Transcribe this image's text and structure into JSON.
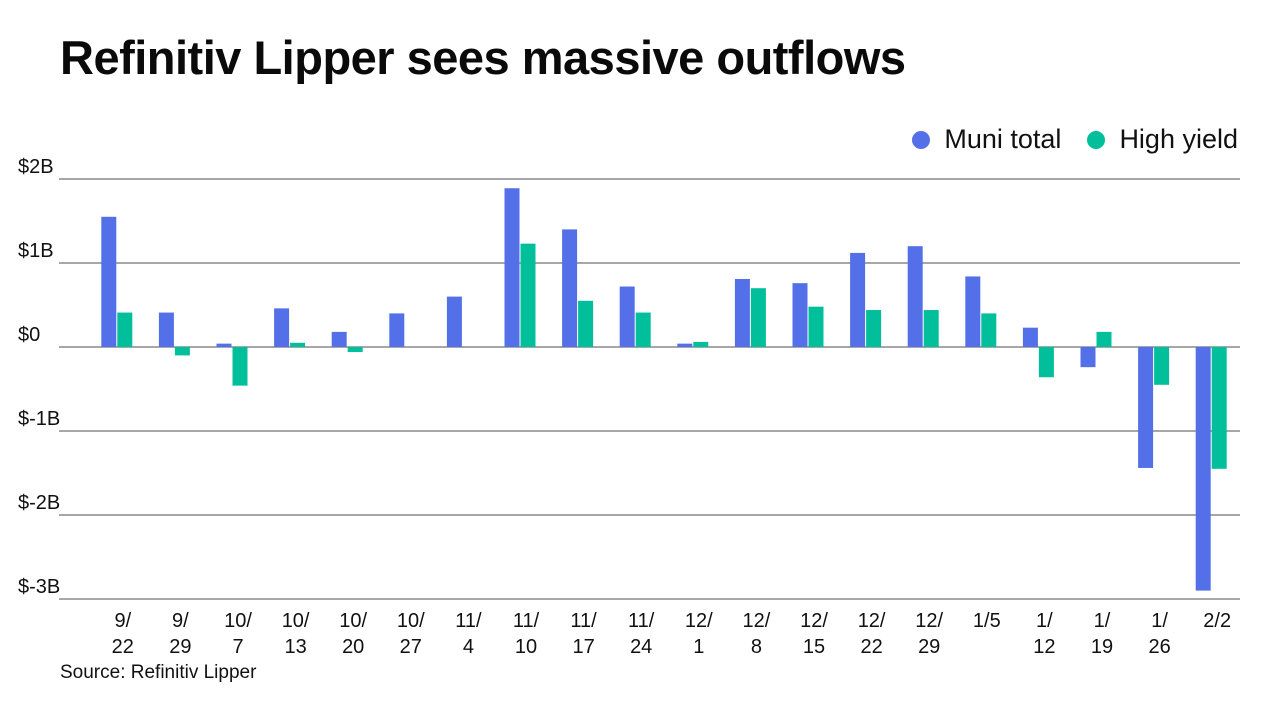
{
  "title": "Refinitiv Lipper sees massive outflows",
  "source": "Source: Refinitiv Lipper",
  "chart_data": {
    "type": "bar",
    "title": "Refinitiv Lipper sees massive outflows",
    "xlabel": "",
    "ylabel": "",
    "ylim": [
      -3,
      2
    ],
    "grid": true,
    "legend_position": "top-right",
    "y_ticks": [
      {
        "value": 2,
        "label": "$2B"
      },
      {
        "value": 1,
        "label": "$1B"
      },
      {
        "value": 0,
        "label": "$0"
      },
      {
        "value": -1,
        "label": "$-1B"
      },
      {
        "value": -2,
        "label": "$-2B"
      },
      {
        "value": -3,
        "label": "$-3B"
      }
    ],
    "categories": [
      [
        "9/",
        "22"
      ],
      [
        "9/",
        "29"
      ],
      [
        "10/",
        "7"
      ],
      [
        "10/",
        "13"
      ],
      [
        "10/",
        "20"
      ],
      [
        "10/",
        "27"
      ],
      [
        "11/",
        "4"
      ],
      [
        "11/",
        "10"
      ],
      [
        "11/",
        "17"
      ],
      [
        "11/",
        "24"
      ],
      [
        "12/",
        "1"
      ],
      [
        "12/",
        "8"
      ],
      [
        "12/",
        "15"
      ],
      [
        "12/",
        "22"
      ],
      [
        "12/",
        "29"
      ],
      [
        "1/5",
        ""
      ],
      [
        "1/",
        "12"
      ],
      [
        "1/",
        "19"
      ],
      [
        "1/",
        "26"
      ],
      [
        "2/2",
        ""
      ]
    ],
    "units": "billions of dollars",
    "series": [
      {
        "name": "Muni total",
        "color": "#5470e8",
        "values": [
          1.55,
          0.41,
          0.04,
          0.46,
          0.18,
          0.4,
          0.6,
          1.89,
          1.4,
          0.72,
          0.04,
          0.81,
          0.76,
          1.12,
          1.2,
          0.84,
          0.23,
          -0.24,
          -1.44,
          -2.9
        ]
      },
      {
        "name": "High yield",
        "color": "#00bf9a",
        "values": [
          0.41,
          -0.1,
          -0.46,
          0.05,
          -0.06,
          0.0,
          0.0,
          1.23,
          0.55,
          0.41,
          0.06,
          0.7,
          0.48,
          0.44,
          0.44,
          0.4,
          -0.36,
          0.18,
          -0.45,
          -1.45
        ]
      }
    ]
  }
}
